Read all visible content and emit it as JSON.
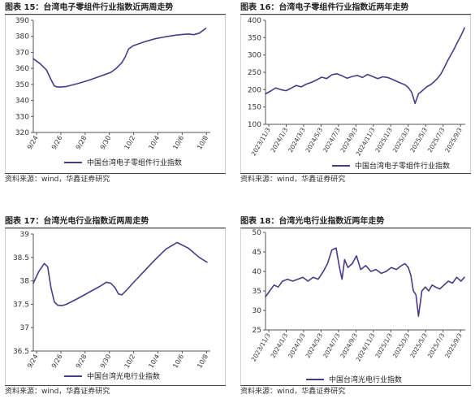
{
  "colors": {
    "series": "#4b3a87",
    "axis": "#555555",
    "text": "#333333",
    "frame": "#d0d0d0"
  },
  "panels": [
    {
      "title": "图表 15：台湾电子零组件行业指数近两周走势",
      "source": "资料来源：wind，华鑫证券研究",
      "chart_data": {
        "type": "line",
        "title": "",
        "xlabel": "",
        "ylabel": "",
        "ylim": [
          320,
          390
        ],
        "yticks": [
          320,
          330,
          340,
          350,
          360,
          370,
          380,
          390
        ],
        "xticks": [
          "9/24",
          "9/26",
          "9/28",
          "9/30",
          "10/2",
          "10/4",
          "10/6",
          "10/8"
        ],
        "x_range": [
          0,
          16
        ],
        "grid": false,
        "legend": "bottom",
        "series": [
          {
            "name": "中国台湾电子零组件行业指数",
            "x": [
              0,
              0.6,
              1.2,
              1.6,
              1.9,
              2.1,
              2.4,
              3,
              4,
              5,
              6,
              7,
              7.5,
              8,
              8.3,
              8.6,
              9,
              10,
              11,
              12,
              13,
              14,
              14.5,
              15,
              15.6
            ],
            "values": [
              366,
              363,
              359,
              353,
              349,
              348.5,
              348.3,
              348.7,
              350.5,
              352.5,
              355,
              357.5,
              360,
              363.5,
              367,
              372,
              374,
              376.5,
              378.5,
              379.8,
              380.8,
              381.5,
              381,
              382,
              385
            ]
          }
        ]
      }
    },
    {
      "title": "图表 16：台湾电子零组件行业指数近两年走势",
      "source": "资料来源：wind，华鑫证券研究",
      "chart_data": {
        "type": "line",
        "title": "",
        "xlabel": "",
        "ylabel": "",
        "ylim": [
          100,
          400
        ],
        "yticks": [
          100,
          150,
          200,
          250,
          300,
          350,
          400
        ],
        "xticks": [
          "2023/11/3",
          "2024/1/3",
          "2024/3/3",
          "2024/5/3",
          "2024/7/3",
          "2024/9/3",
          "2024/11/3",
          "2025/1/3",
          "2025/3/3",
          "2025/5/3",
          "2025/7/3",
          "2025/9/3"
        ],
        "x_range": [
          0,
          23.5
        ],
        "grid": false,
        "legend": "bottom",
        "series": [
          {
            "name": "中国台湾电子零组件行业指数",
            "x": [
              0,
              0.6,
              1.2,
              1.8,
              2.4,
              3,
              3.6,
              4.2,
              4.8,
              5.4,
              6,
              6.6,
              7.2,
              7.8,
              8.4,
              9,
              9.6,
              10.2,
              10.8,
              11.4,
              12,
              12.6,
              13.2,
              13.8,
              14.4,
              15,
              15.6,
              16,
              16.4,
              16.8,
              17.2,
              17.6,
              18,
              18.3,
              18.6,
              19,
              19.4,
              19.8,
              20.2,
              20.6,
              21,
              21.4,
              21.8,
              22.2,
              22.6,
              23,
              23.4
            ],
            "values": [
              188,
              196,
              205,
              200,
              197,
              204,
              212,
              208,
              216,
              221,
              228,
              236,
              232,
              243,
              246,
              240,
              233,
              238,
              241,
              235,
              244,
              238,
              232,
              237,
              235,
              229,
              222,
              218,
              214,
              206,
              192,
              160,
              188,
              194,
              200,
              209,
              214,
              222,
              232,
              244,
              262,
              282,
              300,
              318,
              338,
              356,
              378
            ]
          }
        ]
      }
    },
    {
      "title": "图表 17：台湾光电行业指数近两周走势",
      "source": "资料来源：wind，华鑫证券研究",
      "chart_data": {
        "type": "line",
        "title": "",
        "xlabel": "",
        "ylabel": "",
        "ylim": [
          36.5,
          39.0
        ],
        "yticks": [
          36.5,
          37.0,
          37.5,
          38.0,
          38.5,
          39.0
        ],
        "xticks": [
          "9/24",
          "9/26",
          "9/28",
          "9/30",
          "10/2",
          "10/4",
          "10/6",
          "10/8"
        ],
        "x_range": [
          0,
          16
        ],
        "grid": false,
        "legend": "bottom",
        "series": [
          {
            "name": "中国台湾光电行业指数",
            "x": [
              0,
              0.5,
              1,
              1.3,
              1.6,
              1.9,
              2.2,
              2.6,
              3,
              4,
              5,
              6,
              6.6,
              7,
              7.4,
              7.7,
              8,
              8.5,
              9,
              10,
              11,
              12,
              13,
              14,
              14.5,
              15,
              15.7
            ],
            "values": [
              37.95,
              38.2,
              38.37,
              38.3,
              37.85,
              37.55,
              37.48,
              37.47,
              37.5,
              37.62,
              37.75,
              37.88,
              37.97,
              37.95,
              37.85,
              37.72,
              37.7,
              37.82,
              37.95,
              38.2,
              38.45,
              38.68,
              38.82,
              38.7,
              38.6,
              38.5,
              38.4
            ]
          }
        ]
      }
    },
    {
      "title": "图表 18：台湾光电行业指数近两年走势",
      "source": "资料来源：wind，华鑫证券研究",
      "chart_data": {
        "type": "line",
        "title": "",
        "xlabel": "",
        "ylabel": "",
        "ylim": [
          25,
          50
        ],
        "yticks": [
          25,
          30,
          35,
          40,
          45,
          50
        ],
        "xticks": [
          "2023/11/3",
          "2024/1/3",
          "2024/3/3",
          "2024/5/3",
          "2024/7/3",
          "2024/9/3",
          "2024/11/3",
          "2025/1/3",
          "2025/3/3",
          "2025/5/3",
          "2025/7/3",
          "2025/9/3"
        ],
        "x_range": [
          0,
          23.5
        ],
        "grid": false,
        "legend": "bottom",
        "series": [
          {
            "name": "中国台湾光电行业指数",
            "x": [
              0,
              0.5,
              1,
              1.5,
              2,
              2.6,
              3.2,
              3.8,
              4.4,
              5,
              5.6,
              6.2,
              6.8,
              7.3,
              7.8,
              8.3,
              8.7,
              9,
              9.3,
              9.7,
              10.2,
              10.7,
              11.2,
              11.8,
              12.4,
              13,
              13.6,
              14.2,
              14.8,
              15.4,
              16,
              16.4,
              16.8,
              17.1,
              17.4,
              17.7,
              18,
              18.4,
              18.8,
              19.2,
              19.6,
              20,
              20.5,
              21,
              21.5,
              22,
              22.5,
              23,
              23.4
            ],
            "values": [
              33.5,
              35,
              36.5,
              36,
              37.5,
              38,
              37.5,
              38,
              38.5,
              37.5,
              38.5,
              38,
              40,
              42,
              45.5,
              46,
              41,
              38,
              43,
              41,
              42,
              44,
              40.5,
              41.5,
              40,
              40.5,
              39.5,
              40,
              41,
              40.5,
              41.5,
              42,
              41,
              39,
              35,
              34,
              28.5,
              35,
              36,
              35,
              36.5,
              36,
              35.5,
              36.5,
              37.5,
              37,
              38.5,
              37.5,
              38.5
            ]
          }
        ]
      }
    }
  ]
}
